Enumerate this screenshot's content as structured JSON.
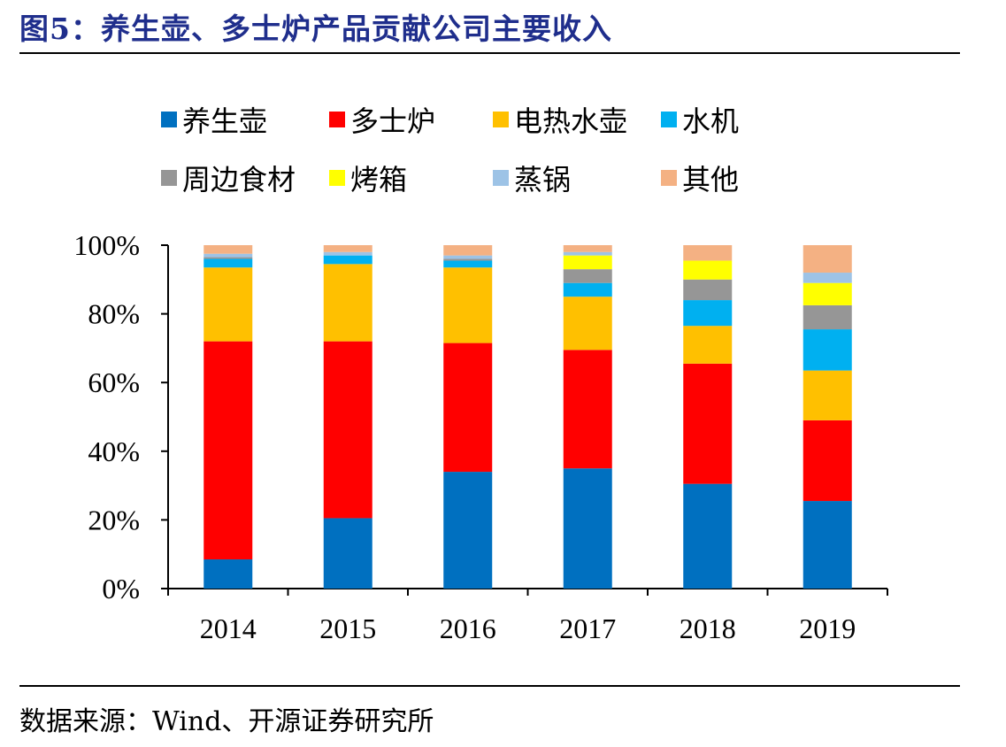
{
  "header": {
    "title": "图5：养生壶、多士炉产品贡献公司主要收入"
  },
  "footer": {
    "source": "数据来源：Wind、开源证券研究所"
  },
  "chart_data": {
    "type": "bar",
    "stacked": true,
    "percent": true,
    "categories": [
      "2014",
      "2015",
      "2016",
      "2017",
      "2018",
      "2019"
    ],
    "y_ticks": [
      "0%",
      "20%",
      "40%",
      "60%",
      "80%",
      "100%"
    ],
    "ylim": [
      0,
      100
    ],
    "legend_position": "top",
    "series": [
      {
        "name": "养生壶",
        "color": "#0070c0",
        "values": [
          8.5,
          20.5,
          34.0,
          35.0,
          30.5,
          25.5
        ]
      },
      {
        "name": "多士炉",
        "color": "#ff0000",
        "values": [
          63.5,
          51.5,
          37.5,
          34.5,
          35.0,
          23.5
        ]
      },
      {
        "name": "电热水壶",
        "color": "#ffc000",
        "values": [
          21.5,
          22.5,
          22.0,
          15.5,
          11.0,
          14.5
        ]
      },
      {
        "name": "水机",
        "color": "#00b0f0",
        "values": [
          2.5,
          2.5,
          2.0,
          4.0,
          7.5,
          12.0
        ]
      },
      {
        "name": "周边食材",
        "color": "#969696",
        "values": [
          0.5,
          0.0,
          0.5,
          4.0,
          6.0,
          7.0
        ]
      },
      {
        "name": "烤箱",
        "color": "#ffff00",
        "values": [
          0.0,
          0.0,
          0.0,
          4.0,
          5.5,
          6.5
        ]
      },
      {
        "name": "蒸锅",
        "color": "#9dc3e6",
        "values": [
          1.0,
          1.0,
          1.0,
          1.0,
          0.0,
          3.0
        ]
      },
      {
        "name": "其他",
        "color": "#f4b183",
        "values": [
          2.5,
          2.0,
          3.0,
          2.0,
          4.5,
          8.0
        ]
      }
    ]
  }
}
